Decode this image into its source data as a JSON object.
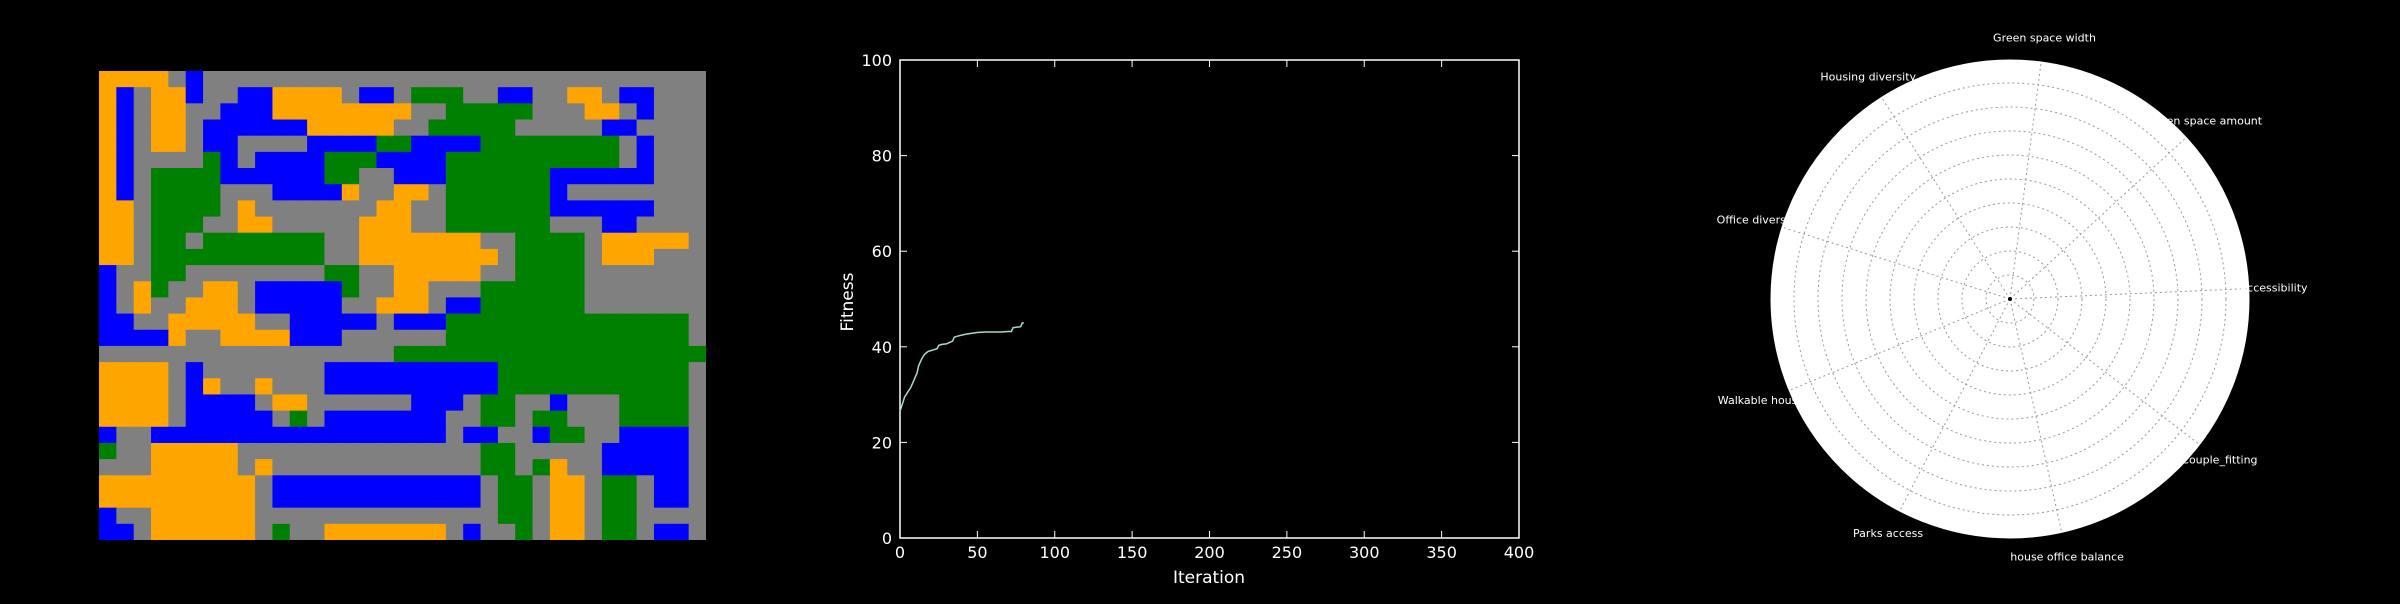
{
  "palette": {
    "background": "#000000",
    "road": "#808080",
    "housing": "#ffa500",
    "office": "#0000ff",
    "park": "#008000",
    "fitness_line": "#a6dcd0"
  },
  "layout_grid": {
    "rows": [
      "HHHHRORRRRRRRRRRRRRRRRRRRRRRRRRR",
      "HORHHORROOHHHHROORGGGRROORRHHROO",
      "HORHHRROOOHHHHHHHHRRGGGGGRRRHHRO",
      "HORHHROOOOOOHHHHHRRGGGGGRRRRROO",
      "HORHHROORRRROOOOGGOOOOGGGGGGGGRO",
      "HORRRRGOROOOOGGGOOOOGGGGGGGGGGRO",
      "HORGGGGOOOOOOGGRROOOGGGGGGOOOOOO",
      "HORGGGGRRROOOOHRRHHRGGGGGGORRRRR",
      "HHRGGGGRHRRRRRRRHHRRGGGGGGOOOOOO",
      "HHRGGGRRHHRRRRRHHHRRGGGGGGRRROOR",
      "HHRGGRGGGGGGGRRHHHHHHHRRGGGGRHHHHH",
      "HHRGGGGGGGGGGRRHHHHHHHHRGGGGRHHHRR",
      "ORRGGRRRRRRRRGGRRHHHHHRRGGGGRRRRRR",
      "ORHGRRHHROOOOOGRRHHRRRGGGGGGRRRRRR",
      "ORHRRHHHROOOOORRHHHROOGGGGGGRRRRRR",
      "OORRHHHHHRROOOOOROOOGGGGGGGGGGGGGG",
      "OOOOHRRHHHHOOORRRRRRGGGGGGGGGGGGGG",
      "RRRRRRRRRRRRRRRRRGGGGGGGGGGGGGGGGGG",
      "HHHHRORRRRRRROOOOOOOOOOGGGGGGGGGGG",
      "HHHHROHRRHRRROOOOOOOOOOGGGGGGGGGGG",
      "HHHHROOOORHHRRRRRROOORGGRRORRRGGGG",
      "HHHHROOOOORGROOOOOOORRGGRGGRRRGGGG",
      "ORROOOOOOOOOOOOOOOOOROORROGGRROOOO",
      "GRRHHHHHRRRRRRRRRRRRRRGGRRRRROOOOO",
      "RRRHHHHHRHRRRRRRRRRRRRGGRGHRROOOOO",
      "HHHHHHHHHROOOOOOOOOOOORGGRHHRGGROO",
      "HHHHHHHHHROOOOOOOOOOOORGGRHHRGGROO",
      "ORRHHHHHHRRRRRRRRRRRRRRGGRHHRGGRRR",
      "OORHHHHHHRGRRHHHHHHHRORRGRHHRGGROO"
    ]
  },
  "chart_data": [
    {
      "type": "line",
      "title": "",
      "xlabel": "Iteration",
      "ylabel": "Fitness",
      "xlim": [
        0,
        400
      ],
      "ylim": [
        0,
        100
      ],
      "xticks": [
        "0",
        "50",
        "100",
        "150",
        "200",
        "250",
        "300",
        "350",
        "400"
      ],
      "yticks": [
        "0",
        "20",
        "40",
        "60",
        "80",
        "100"
      ],
      "grid": false,
      "series": [
        {
          "x": [
            0,
            1,
            2,
            3,
            5,
            7,
            9,
            11,
            12,
            14,
            16,
            18,
            20,
            22,
            24,
            25,
            27,
            30,
            34,
            35,
            38,
            42,
            46,
            50,
            55,
            60,
            65,
            70,
            72,
            73,
            75,
            78,
            79,
            80
          ],
          "y": [
            26.5,
            27.5,
            28.5,
            29.5,
            30.5,
            31.5,
            33,
            34.5,
            36,
            37.5,
            38.5,
            39,
            39.2,
            39.4,
            39.6,
            40.3,
            40.5,
            40.6,
            41.2,
            42,
            42.3,
            42.6,
            42.8,
            43,
            43.1,
            43.1,
            43.1,
            43.2,
            43.2,
            44,
            44.1,
            44.2,
            45,
            45
          ]
        }
      ]
    },
    {
      "type": "radar",
      "axes": [
        "Green space width",
        "Green space amount",
        "Accessibility",
        "Couple_fitting",
        "house office balance",
        "Parks access",
        "Walkable housing",
        "Office diversity",
        "Housing diversity"
      ],
      "rings": 10,
      "grid": true,
      "values": []
    }
  ]
}
